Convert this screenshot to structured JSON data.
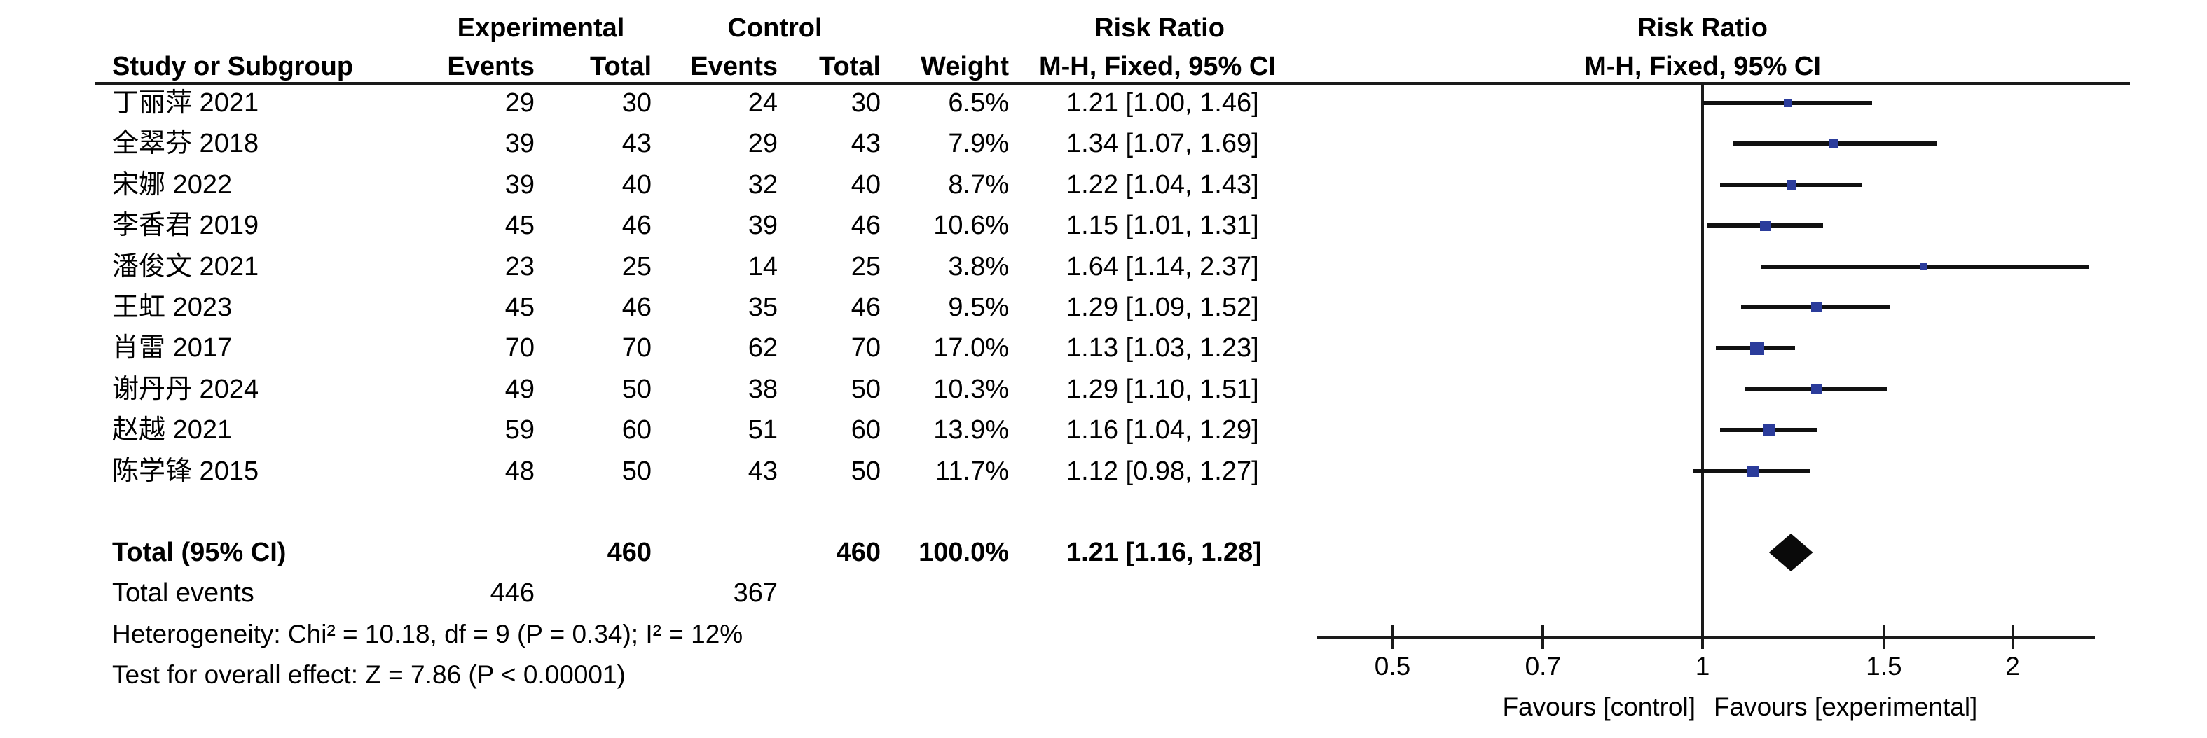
{
  "table": {
    "group_headers": {
      "experimental": "Experimental",
      "control": "Control",
      "risk_ratio": "Risk Ratio"
    },
    "column_headers": {
      "study": "Study or Subgroup",
      "events": "Events",
      "total": "Total",
      "events2": "Events",
      "total2": "Total",
      "weight": "Weight",
      "mh_fixed": "M-H, Fixed, 95% CI"
    },
    "plot_headers": {
      "risk_ratio": "Risk Ratio",
      "mh_fixed": "M-H, Fixed, 95% CI"
    }
  },
  "studies": [
    {
      "name": "丁丽萍 2021",
      "exp_events": "29",
      "exp_total": "30",
      "ctrl_events": "24",
      "ctrl_total": "30",
      "weight": "6.5%",
      "weight_pct": 6.5,
      "rr_text": "1.21 [1.00, 1.46]",
      "rr": 1.21,
      "lo": 1.0,
      "hi": 1.46
    },
    {
      "name": "全翠芬 2018",
      "exp_events": "39",
      "exp_total": "43",
      "ctrl_events": "29",
      "ctrl_total": "43",
      "weight": "7.9%",
      "weight_pct": 7.9,
      "rr_text": "1.34 [1.07, 1.69]",
      "rr": 1.34,
      "lo": 1.07,
      "hi": 1.69
    },
    {
      "name": "宋娜 2022",
      "exp_events": "39",
      "exp_total": "40",
      "ctrl_events": "32",
      "ctrl_total": "40",
      "weight": "8.7%",
      "weight_pct": 8.7,
      "rr_text": "1.22 [1.04, 1.43]",
      "rr": 1.22,
      "lo": 1.04,
      "hi": 1.43
    },
    {
      "name": "李香君 2019",
      "exp_events": "45",
      "exp_total": "46",
      "ctrl_events": "39",
      "ctrl_total": "46",
      "weight": "10.6%",
      "weight_pct": 10.6,
      "rr_text": "1.15 [1.01, 1.31]",
      "rr": 1.15,
      "lo": 1.01,
      "hi": 1.31
    },
    {
      "name": "潘俊文 2021",
      "exp_events": "23",
      "exp_total": "25",
      "ctrl_events": "14",
      "ctrl_total": "25",
      "weight": "3.8%",
      "weight_pct": 3.8,
      "rr_text": "1.64 [1.14, 2.37]",
      "rr": 1.64,
      "lo": 1.14,
      "hi": 2.37
    },
    {
      "name": "王虹 2023",
      "exp_events": "45",
      "exp_total": "46",
      "ctrl_events": "35",
      "ctrl_total": "46",
      "weight": "9.5%",
      "weight_pct": 9.5,
      "rr_text": "1.29 [1.09, 1.52]",
      "rr": 1.29,
      "lo": 1.09,
      "hi": 1.52
    },
    {
      "name": "肖雷 2017",
      "exp_events": "70",
      "exp_total": "70",
      "ctrl_events": "62",
      "ctrl_total": "70",
      "weight": "17.0%",
      "weight_pct": 17.0,
      "rr_text": "1.13 [1.03, 1.23]",
      "rr": 1.13,
      "lo": 1.03,
      "hi": 1.23
    },
    {
      "name": "谢丹丹 2024",
      "exp_events": "49",
      "exp_total": "50",
      "ctrl_events": "38",
      "ctrl_total": "50",
      "weight": "10.3%",
      "weight_pct": 10.3,
      "rr_text": "1.29 [1.10, 1.51]",
      "rr": 1.29,
      "lo": 1.1,
      "hi": 1.51
    },
    {
      "name": "赵越 2021",
      "exp_events": "59",
      "exp_total": "60",
      "ctrl_events": "51",
      "ctrl_total": "60",
      "weight": "13.9%",
      "weight_pct": 13.9,
      "rr_text": "1.16 [1.04, 1.29]",
      "rr": 1.16,
      "lo": 1.04,
      "hi": 1.29
    },
    {
      "name": "陈学锋 2015",
      "exp_events": "48",
      "exp_total": "50",
      "ctrl_events": "43",
      "ctrl_total": "50",
      "weight": "11.7%",
      "weight_pct": 11.7,
      "rr_text": "1.12 [0.98, 1.27]",
      "rr": 1.12,
      "lo": 0.98,
      "hi": 1.27
    }
  ],
  "totals": {
    "label": "Total (95% CI)",
    "exp_total": "460",
    "ctrl_total": "460",
    "weight": "100.0%",
    "rr_text": "1.21 [1.16, 1.28]",
    "rr": 1.21,
    "lo": 1.16,
    "hi": 1.28
  },
  "total_events": {
    "label": "Total events",
    "experimental": "446",
    "control": "367"
  },
  "footer": {
    "heterogeneity": "Heterogeneity: Chi² = 10.18, df = 9 (P = 0.34); I² = 12%",
    "overall_effect": "Test for overall effect: Z = 7.86 (P < 0.00001)"
  },
  "axis": {
    "ticks": [
      "0.5",
      "0.7",
      "1",
      "1.5",
      "2"
    ],
    "favours_left": "Favours [control]",
    "favours_right": "Favours [experimental]"
  },
  "colors": {
    "square_blue": "#2B3C9B",
    "diamond_black": "#0a0a0a",
    "line_black": "#111111"
  },
  "chart_data": {
    "type": "forest",
    "effect_measure": "Risk Ratio",
    "method": "M-H, Fixed, 95% CI",
    "x_scale": "log",
    "x_ticks": [
      0.5,
      0.7,
      1,
      1.5,
      2
    ],
    "x_range": [
      0.42,
      2.4
    ],
    "categories": [
      "丁丽萍 2021",
      "全翠芬 2018",
      "宋娜 2022",
      "李香君 2019",
      "潘俊文 2021",
      "王虹 2023",
      "肖雷 2017",
      "谢丹丹 2024",
      "赵越 2021",
      "陈学锋 2015"
    ],
    "series": [
      {
        "name": "risk_ratio",
        "values": [
          1.21,
          1.34,
          1.22,
          1.15,
          1.64,
          1.29,
          1.13,
          1.29,
          1.16,
          1.12
        ]
      },
      {
        "name": "ci_low",
        "values": [
          1.0,
          1.07,
          1.04,
          1.01,
          1.14,
          1.09,
          1.03,
          1.1,
          1.04,
          0.98
        ]
      },
      {
        "name": "ci_high",
        "values": [
          1.46,
          1.69,
          1.43,
          1.31,
          2.37,
          1.52,
          1.23,
          1.51,
          1.29,
          1.27
        ]
      },
      {
        "name": "weight_pct",
        "values": [
          6.5,
          7.9,
          8.7,
          10.6,
          3.8,
          9.5,
          17.0,
          10.3,
          13.9,
          11.7
        ]
      }
    ],
    "total": {
      "label": "Total (95% CI)",
      "rr": 1.21,
      "ci_low": 1.16,
      "ci_high": 1.28,
      "weight_pct": 100.0
    },
    "annotations": [
      "Heterogeneity: Chi² = 10.18, df = 9 (P = 0.34); I² = 12%",
      "Test for overall effect: Z = 7.86 (P < 0.00001)"
    ],
    "legend_position": "none",
    "grid": false
  }
}
